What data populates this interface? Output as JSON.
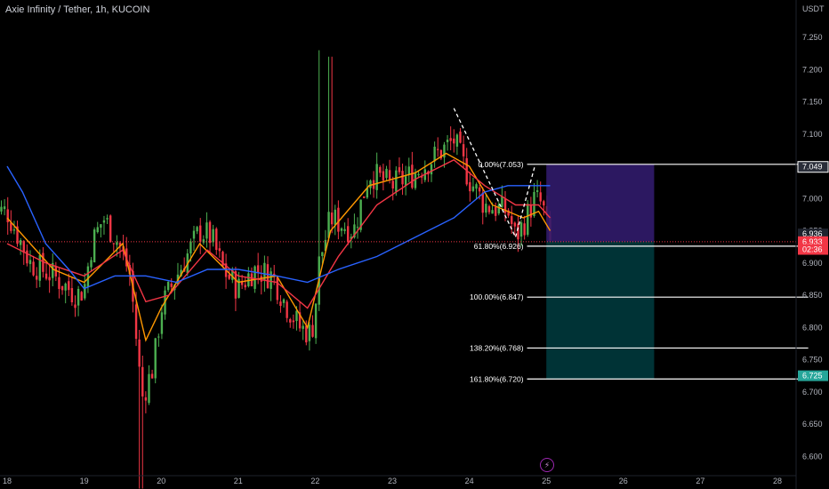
{
  "header": {
    "title": "Axie Infinity / Tether, 1h, KUCOIN",
    "currency": "USDT"
  },
  "colors": {
    "up": "#4caf50",
    "down": "#f23645",
    "ma_fast": "#ff9800",
    "ma_mid": "#f23645",
    "ma_slow": "#2962ff",
    "long_target_zone": "#311b6b",
    "long_stop_zone": "#00383c",
    "price_label_up": "#26a69a",
    "price_label_entry": "#2a2e39"
  },
  "icons": {
    "replay": "lightning-icon"
  },
  "chart_data": {
    "type": "candlestick",
    "symbol": "AXS/USDT",
    "interval": "1h",
    "exchange": "KUCOIN",
    "ylim": [
      6.57,
      7.29
    ],
    "y_ticks": [
      "7.250",
      "7.200",
      "7.150",
      "7.100",
      "7.050",
      "7.000",
      "6.950",
      "6.900",
      "6.850",
      "6.800",
      "6.750",
      "6.700",
      "6.650",
      "6.600"
    ],
    "x_ticks": [
      "18",
      "19",
      "20",
      "21",
      "22",
      "23",
      "24",
      "25",
      "26",
      "27",
      "28"
    ],
    "price_anchors": [
      [
        18.0,
        6.98
      ],
      [
        18.3,
        6.9
      ],
      [
        18.6,
        6.88
      ],
      [
        18.9,
        6.85
      ],
      [
        19.0,
        6.86
      ],
      [
        19.1,
        6.93
      ],
      [
        19.25,
        6.97
      ],
      [
        19.45,
        6.93
      ],
      [
        19.6,
        6.88
      ],
      [
        19.75,
        6.69
      ],
      [
        19.9,
        6.74
      ],
      [
        20.0,
        6.83
      ],
      [
        20.2,
        6.88
      ],
      [
        20.5,
        6.95
      ],
      [
        20.65,
        6.94
      ],
      [
        20.8,
        6.89
      ],
      [
        21.0,
        6.86
      ],
      [
        21.2,
        6.89
      ],
      [
        21.45,
        6.88
      ],
      [
        21.6,
        6.84
      ],
      [
        21.8,
        6.8
      ],
      [
        21.95,
        6.79
      ],
      [
        22.0,
        6.83
      ],
      [
        22.05,
        6.9
      ],
      [
        22.2,
        6.97
      ],
      [
        22.5,
        6.95
      ],
      [
        22.7,
        7.04
      ],
      [
        23.0,
        7.02
      ],
      [
        23.3,
        7.04
      ],
      [
        23.6,
        7.07
      ],
      [
        23.8,
        7.09
      ],
      [
        24.0,
        7.03
      ],
      [
        24.2,
        6.99
      ],
      [
        24.5,
        6.98
      ],
      [
        24.6,
        6.94
      ],
      [
        24.7,
        6.96
      ],
      [
        24.85,
        7.0
      ],
      [
        24.95,
        6.99
      ],
      [
        25.05,
        6.93
      ]
    ],
    "moving_averages": [
      {
        "points": [
          [
            18.0,
            6.97
          ],
          [
            18.6,
            6.89
          ],
          [
            19.0,
            6.87
          ],
          [
            19.5,
            6.93
          ],
          [
            19.8,
            6.78
          ],
          [
            20.0,
            6.83
          ],
          [
            20.5,
            6.93
          ],
          [
            21.0,
            6.87
          ],
          [
            21.5,
            6.88
          ],
          [
            21.9,
            6.8
          ],
          [
            22.2,
            6.95
          ],
          [
            22.7,
            7.02
          ],
          [
            23.3,
            7.04
          ],
          [
            23.7,
            7.07
          ],
          [
            24.0,
            7.05
          ],
          [
            24.3,
            6.99
          ],
          [
            24.7,
            6.97
          ],
          [
            24.9,
            6.98
          ],
          [
            25.05,
            6.95
          ]
        ]
      },
      {
        "points": [
          [
            18.0,
            6.93
          ],
          [
            18.5,
            6.9
          ],
          [
            19.0,
            6.88
          ],
          [
            19.5,
            6.92
          ],
          [
            19.8,
            6.84
          ],
          [
            20.1,
            6.85
          ],
          [
            20.6,
            6.92
          ],
          [
            21.0,
            6.88
          ],
          [
            21.5,
            6.87
          ],
          [
            21.9,
            6.83
          ],
          [
            22.3,
            6.91
          ],
          [
            22.8,
            6.99
          ],
          [
            23.3,
            7.03
          ],
          [
            23.8,
            7.06
          ],
          [
            24.2,
            7.02
          ],
          [
            24.6,
            6.99
          ],
          [
            24.9,
            6.99
          ],
          [
            25.05,
            6.97
          ]
        ]
      },
      {
        "points": [
          [
            18.0,
            7.05
          ],
          [
            18.2,
            7.01
          ],
          [
            18.5,
            6.93
          ],
          [
            18.8,
            6.89
          ],
          [
            19.0,
            6.86
          ],
          [
            19.4,
            6.88
          ],
          [
            19.8,
            6.88
          ],
          [
            20.2,
            6.87
          ],
          [
            20.6,
            6.89
          ],
          [
            21.0,
            6.89
          ],
          [
            21.5,
            6.88
          ],
          [
            21.9,
            6.87
          ],
          [
            22.3,
            6.89
          ],
          [
            22.8,
            6.91
          ],
          [
            23.3,
            6.94
          ],
          [
            23.8,
            6.97
          ],
          [
            24.2,
            7.01
          ],
          [
            24.5,
            7.02
          ],
          [
            24.8,
            7.02
          ],
          [
            25.05,
            7.02
          ]
        ]
      }
    ],
    "fibonacci": {
      "levels": [
        {
          "label": "0.00%(7.053)",
          "price": 7.053
        },
        {
          "label": "61.80%(6.926)",
          "price": 6.926
        },
        {
          "label": "100.00%(6.847)",
          "price": 6.847
        },
        {
          "label": "138.20%(6.768)",
          "price": 6.768
        },
        {
          "label": "161.80%(6.720)",
          "price": 6.72
        }
      ],
      "x_start": 24.75,
      "x_end": 28.4
    },
    "zigzag": [
      [
        23.8,
        7.14
      ],
      [
        24.6,
        6.94
      ],
      [
        24.85,
        7.05
      ]
    ],
    "long_position": {
      "x_start": 25.0,
      "x_end": 26.4,
      "target": 7.053,
      "entry": 6.933,
      "stop": 6.72
    },
    "current_price_line": 6.933,
    "price_labels": [
      {
        "text": "7.049",
        "price": 7.049,
        "style": "entry"
      },
      {
        "text": "6.936",
        "price": 6.945,
        "style": "neutral"
      },
      {
        "text": "6.933",
        "price": 6.933,
        "style": "last"
      },
      {
        "text": "02:36",
        "price": 6.921,
        "style": "countdown"
      },
      {
        "text": "6.725",
        "price": 6.725,
        "style": "up"
      }
    ]
  }
}
